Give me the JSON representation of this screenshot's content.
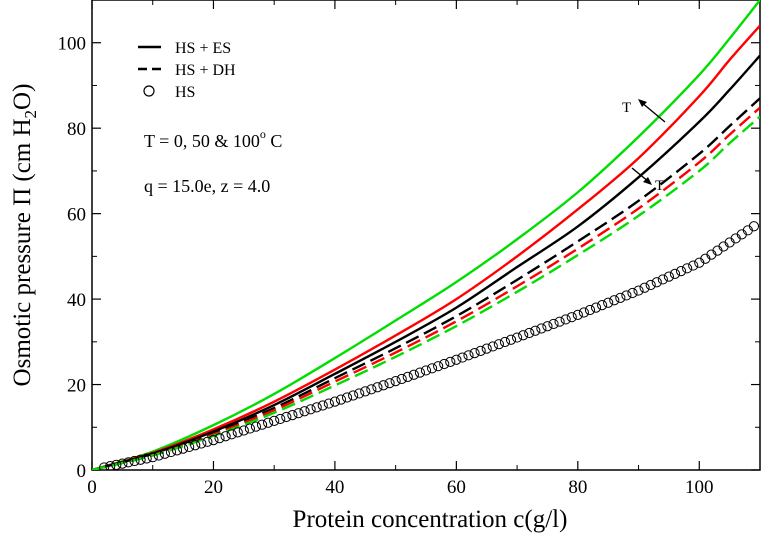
{
  "chart_data": {
    "type": "line",
    "title": "",
    "xlabel": "Protein concentration c(g/l)",
    "ylabel_parts": {
      "main": "Osmotic pressure Π (cm H",
      "sub": "2",
      "tail": "O)"
    },
    "xlim": [
      0,
      110
    ],
    "ylim": [
      0,
      110
    ],
    "xticks": [
      0,
      20,
      40,
      60,
      80,
      100
    ],
    "yticks": [
      0,
      20,
      40,
      60,
      80,
      100
    ],
    "grid": false,
    "legend": {
      "placement": "top-left",
      "entries": [
        {
          "label": "HS + ES",
          "style": "solid"
        },
        {
          "label": "HS + DH",
          "style": "dashed"
        },
        {
          "label": "HS",
          "style": "circle"
        }
      ]
    },
    "annotations": {
      "temps": {
        "prefix": "T = 0, 50 & 100",
        "sup": "o",
        "suffix": " C"
      },
      "params": "q = 15.0e, z = 4.0",
      "arrow_es": "T",
      "arrow_dh": "T"
    },
    "series": [
      {
        "name": "HS + ES",
        "color": "#00dd00",
        "style": "solid",
        "x": [
          0,
          10,
          20,
          30,
          40,
          50,
          60,
          70,
          80,
          90,
          100,
          105,
          110
        ],
        "y": [
          0,
          4.3,
          10.5,
          17.8,
          26.2,
          35.0,
          44.0,
          54.0,
          65.0,
          78.0,
          92.5,
          101.0,
          110.0
        ]
      },
      {
        "name": "HS + ES",
        "color": "#ff0000",
        "style": "solid",
        "x": [
          0,
          10,
          20,
          30,
          40,
          50,
          60,
          70,
          80,
          90,
          100,
          105,
          110
        ],
        "y": [
          0,
          4.0,
          9.5,
          16.0,
          23.5,
          31.5,
          40.0,
          50.0,
          61.0,
          73.0,
          87.5,
          96.0,
          104.0
        ]
      },
      {
        "name": "HS + ES",
        "color": "#000000",
        "style": "solid",
        "x": [
          0,
          10,
          20,
          30,
          40,
          50,
          60,
          70,
          80,
          90,
          100,
          105,
          110
        ],
        "y": [
          0,
          3.8,
          9.0,
          15.2,
          22.5,
          30.0,
          38.0,
          47.5,
          57.0,
          68.5,
          81.5,
          89.0,
          97.0
        ]
      },
      {
        "name": "HS + DH",
        "color": "#000000",
        "style": "dashed",
        "x": [
          0,
          10,
          20,
          30,
          40,
          50,
          60,
          70,
          80,
          90,
          100,
          105,
          110
        ],
        "y": [
          0,
          3.6,
          8.6,
          14.5,
          21.5,
          28.5,
          36.0,
          44.5,
          53.5,
          63.0,
          74.0,
          80.5,
          87.0
        ]
      },
      {
        "name": "HS + DH",
        "color": "#ff0000",
        "style": "dashed",
        "x": [
          0,
          10,
          20,
          30,
          40,
          50,
          60,
          70,
          80,
          90,
          100,
          105,
          110
        ],
        "y": [
          0,
          3.5,
          8.3,
          14.0,
          20.7,
          27.5,
          34.8,
          43.0,
          51.8,
          61.2,
          72.0,
          78.5,
          84.8
        ]
      },
      {
        "name": "HS + DH",
        "color": "#00dd00",
        "style": "dashed",
        "x": [
          0,
          10,
          20,
          30,
          40,
          50,
          60,
          70,
          80,
          90,
          100,
          105,
          110
        ],
        "y": [
          0,
          3.4,
          8.0,
          13.4,
          19.8,
          26.5,
          33.7,
          41.7,
          50.3,
          59.5,
          70.0,
          76.5,
          82.7
        ]
      }
    ],
    "hs_points": {
      "name": "HS",
      "x_start": 2,
      "x_end": 109,
      "x_step": 1,
      "x": [
        0,
        10,
        20,
        30,
        40,
        50,
        60,
        70,
        80,
        90,
        100,
        110
      ],
      "y": [
        0,
        3.0,
        7.0,
        11.5,
        16.0,
        20.8,
        25.8,
        31.0,
        36.3,
        42.0,
        48.5,
        58.0
      ]
    }
  }
}
